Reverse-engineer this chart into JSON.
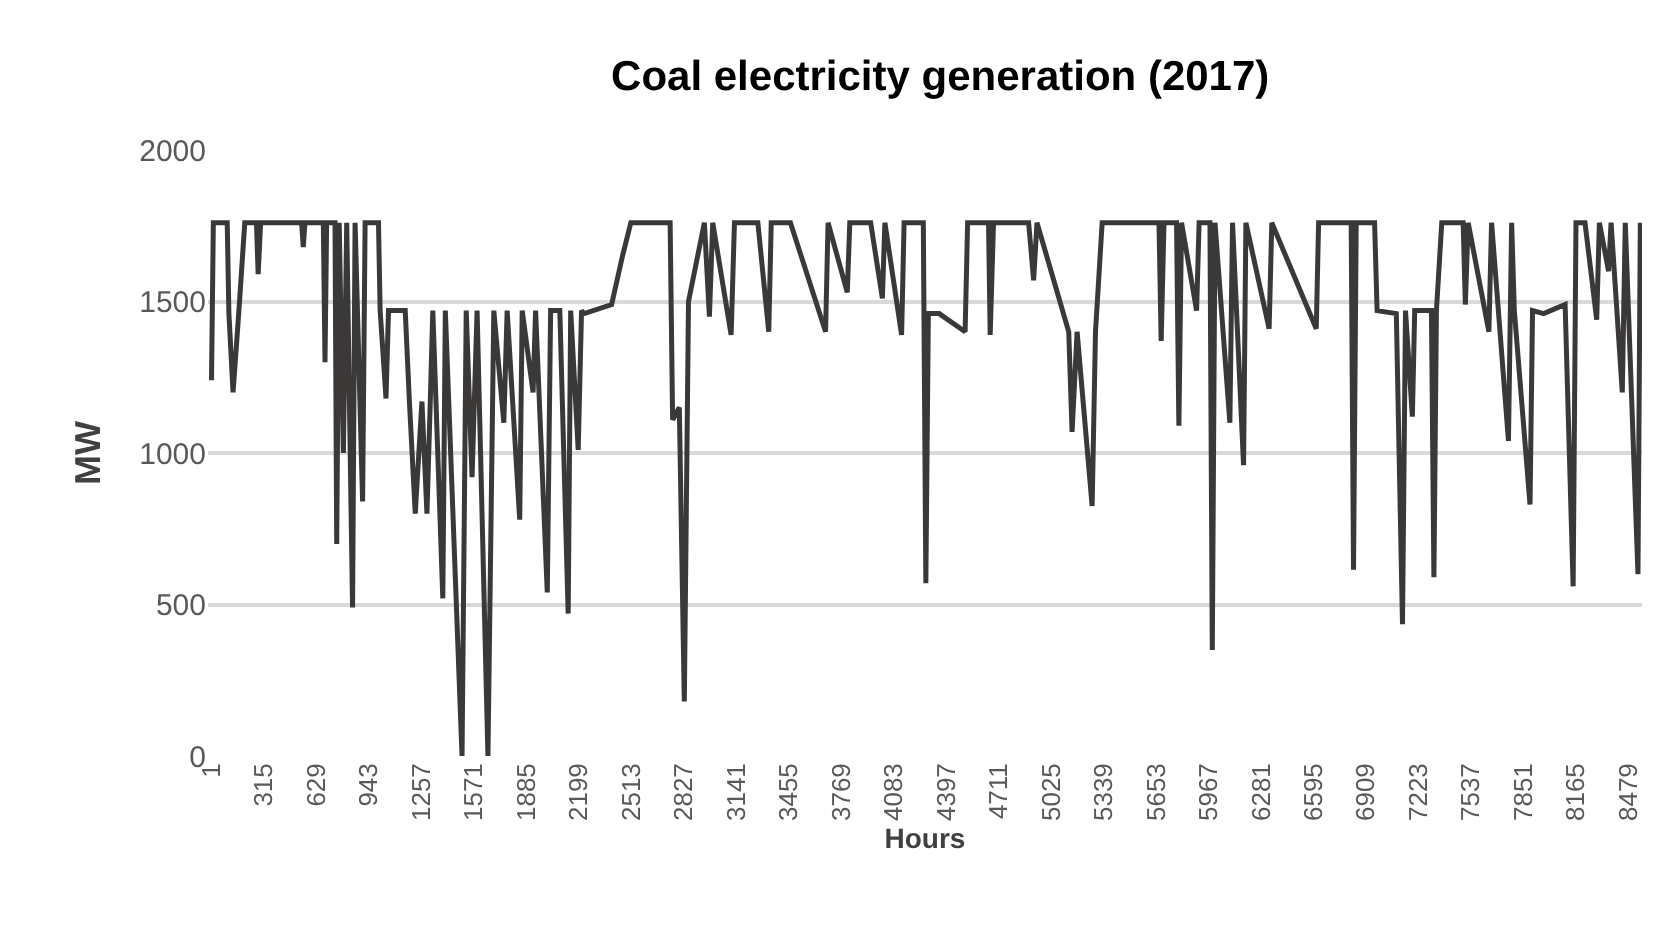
{
  "chart_data": {
    "type": "line",
    "title": "Coal electricity generation (2017)",
    "xlabel": "Hours",
    "ylabel": "MW",
    "x": [
      1,
      12,
      95,
      105,
      130,
      165,
      200,
      270,
      280,
      295,
      540,
      550,
      560,
      670,
      680,
      690,
      740,
      750,
      765,
      790,
      810,
      845,
      860,
      905,
      920,
      1000,
      1010,
      1045,
      1060,
      1160,
      1185,
      1220,
      1260,
      1290,
      1310,
      1325,
      1385,
      1400,
      1500,
      1525,
      1560,
      1590,
      1655,
      1690,
      1750,
      1770,
      1845,
      1860,
      1925,
      1940,
      2010,
      2030,
      2085,
      2135,
      2150,
      2195,
      2215,
      2230,
      2395,
      2460,
      2510,
      2745,
      2760,
      2800,
      2830,
      2855,
      2950,
      2980,
      3000,
      3110,
      3130,
      3270,
      3335,
      3350,
      3465,
      3675,
      3690,
      3805,
      3820,
      3945,
      4015,
      4030,
      4130,
      4145,
      4260,
      4275,
      4290,
      4355,
      4510,
      4525,
      4650,
      4660,
      4680,
      4890,
      4920,
      4940,
      5130,
      5150,
      5180,
      5270,
      5290,
      5330,
      5380,
      5670,
      5683,
      5700,
      5775,
      5789,
      5805,
      5895,
      5910,
      5975,
      5989,
      6005,
      6094,
      6110,
      6176,
      6190,
      6329,
      6345,
      6611,
      6625,
      6820,
      6834,
      6850,
      6960,
      6975,
      7090,
      7127,
      7145,
      7186,
      7200,
      7300,
      7315,
      7330,
      7362,
      7490,
      7503,
      7520,
      7644,
      7660,
      7761,
      7780,
      7796,
      7890,
      7905,
      7972,
      8100,
      8148,
      8165,
      8219,
      8289,
      8305,
      8360,
      8375,
      8442,
      8460,
      8536,
      8550
    ],
    "series": [
      {
        "color": "#3b3838",
        "values": [
          1240,
          1760,
          1760,
          1460,
          1200,
          1470,
          1760,
          1760,
          1590,
          1760,
          1760,
          1680,
          1760,
          1760,
          1300,
          1760,
          1760,
          700,
          1760,
          1000,
          1760,
          490,
          1760,
          840,
          1760,
          1760,
          1470,
          1180,
          1470,
          1470,
          1170,
          800,
          1170,
          800,
          1170,
          1470,
          520,
          1470,
          0,
          1470,
          920,
          1470,
          0,
          1470,
          1100,
          1470,
          780,
          1470,
          1200,
          1470,
          540,
          1470,
          1470,
          470,
          1470,
          1010,
          1470,
          1460,
          1490,
          1650,
          1760,
          1760,
          1110,
          1150,
          180,
          1500,
          1760,
          1450,
          1760,
          1390,
          1760,
          1760,
          1400,
          1760,
          1760,
          1400,
          1760,
          1530,
          1760,
          1760,
          1510,
          1760,
          1390,
          1760,
          1760,
          570,
          1460,
          1460,
          1400,
          1760,
          1760,
          1390,
          1760,
          1760,
          1570,
          1760,
          1400,
          1070,
          1400,
          825,
          1400,
          1760,
          1760,
          1760,
          1370,
          1760,
          1760,
          1090,
          1760,
          1470,
          1760,
          1760,
          350,
          1760,
          1100,
          1760,
          960,
          1760,
          1410,
          1760,
          1410,
          1760,
          1760,
          615,
          1760,
          1760,
          1470,
          1460,
          435,
          1470,
          1120,
          1470,
          1470,
          590,
          1470,
          1760,
          1760,
          1490,
          1760,
          1400,
          1760,
          1040,
          1760,
          1470,
          830,
          1470,
          1460,
          1490,
          560,
          1760,
          1760,
          1440,
          1760,
          1600,
          1760,
          1200,
          1760,
          600,
          1760
        ]
      }
    ],
    "xlim": [
      -20,
      8560
    ],
    "xticks": [
      1,
      315,
      629,
      943,
      1257,
      1571,
      1885,
      2199,
      2513,
      2827,
      3141,
      3455,
      3769,
      4083,
      4397,
      4711,
      5025,
      5339,
      5653,
      5967,
      6281,
      6595,
      6909,
      7223,
      7537,
      7851,
      8165,
      8479
    ],
    "ylim": [
      0,
      2000
    ],
    "yticks": [
      0,
      500,
      1000,
      1500,
      2000
    ],
    "grid": "y",
    "marker": "none",
    "line_style": "solid"
  }
}
